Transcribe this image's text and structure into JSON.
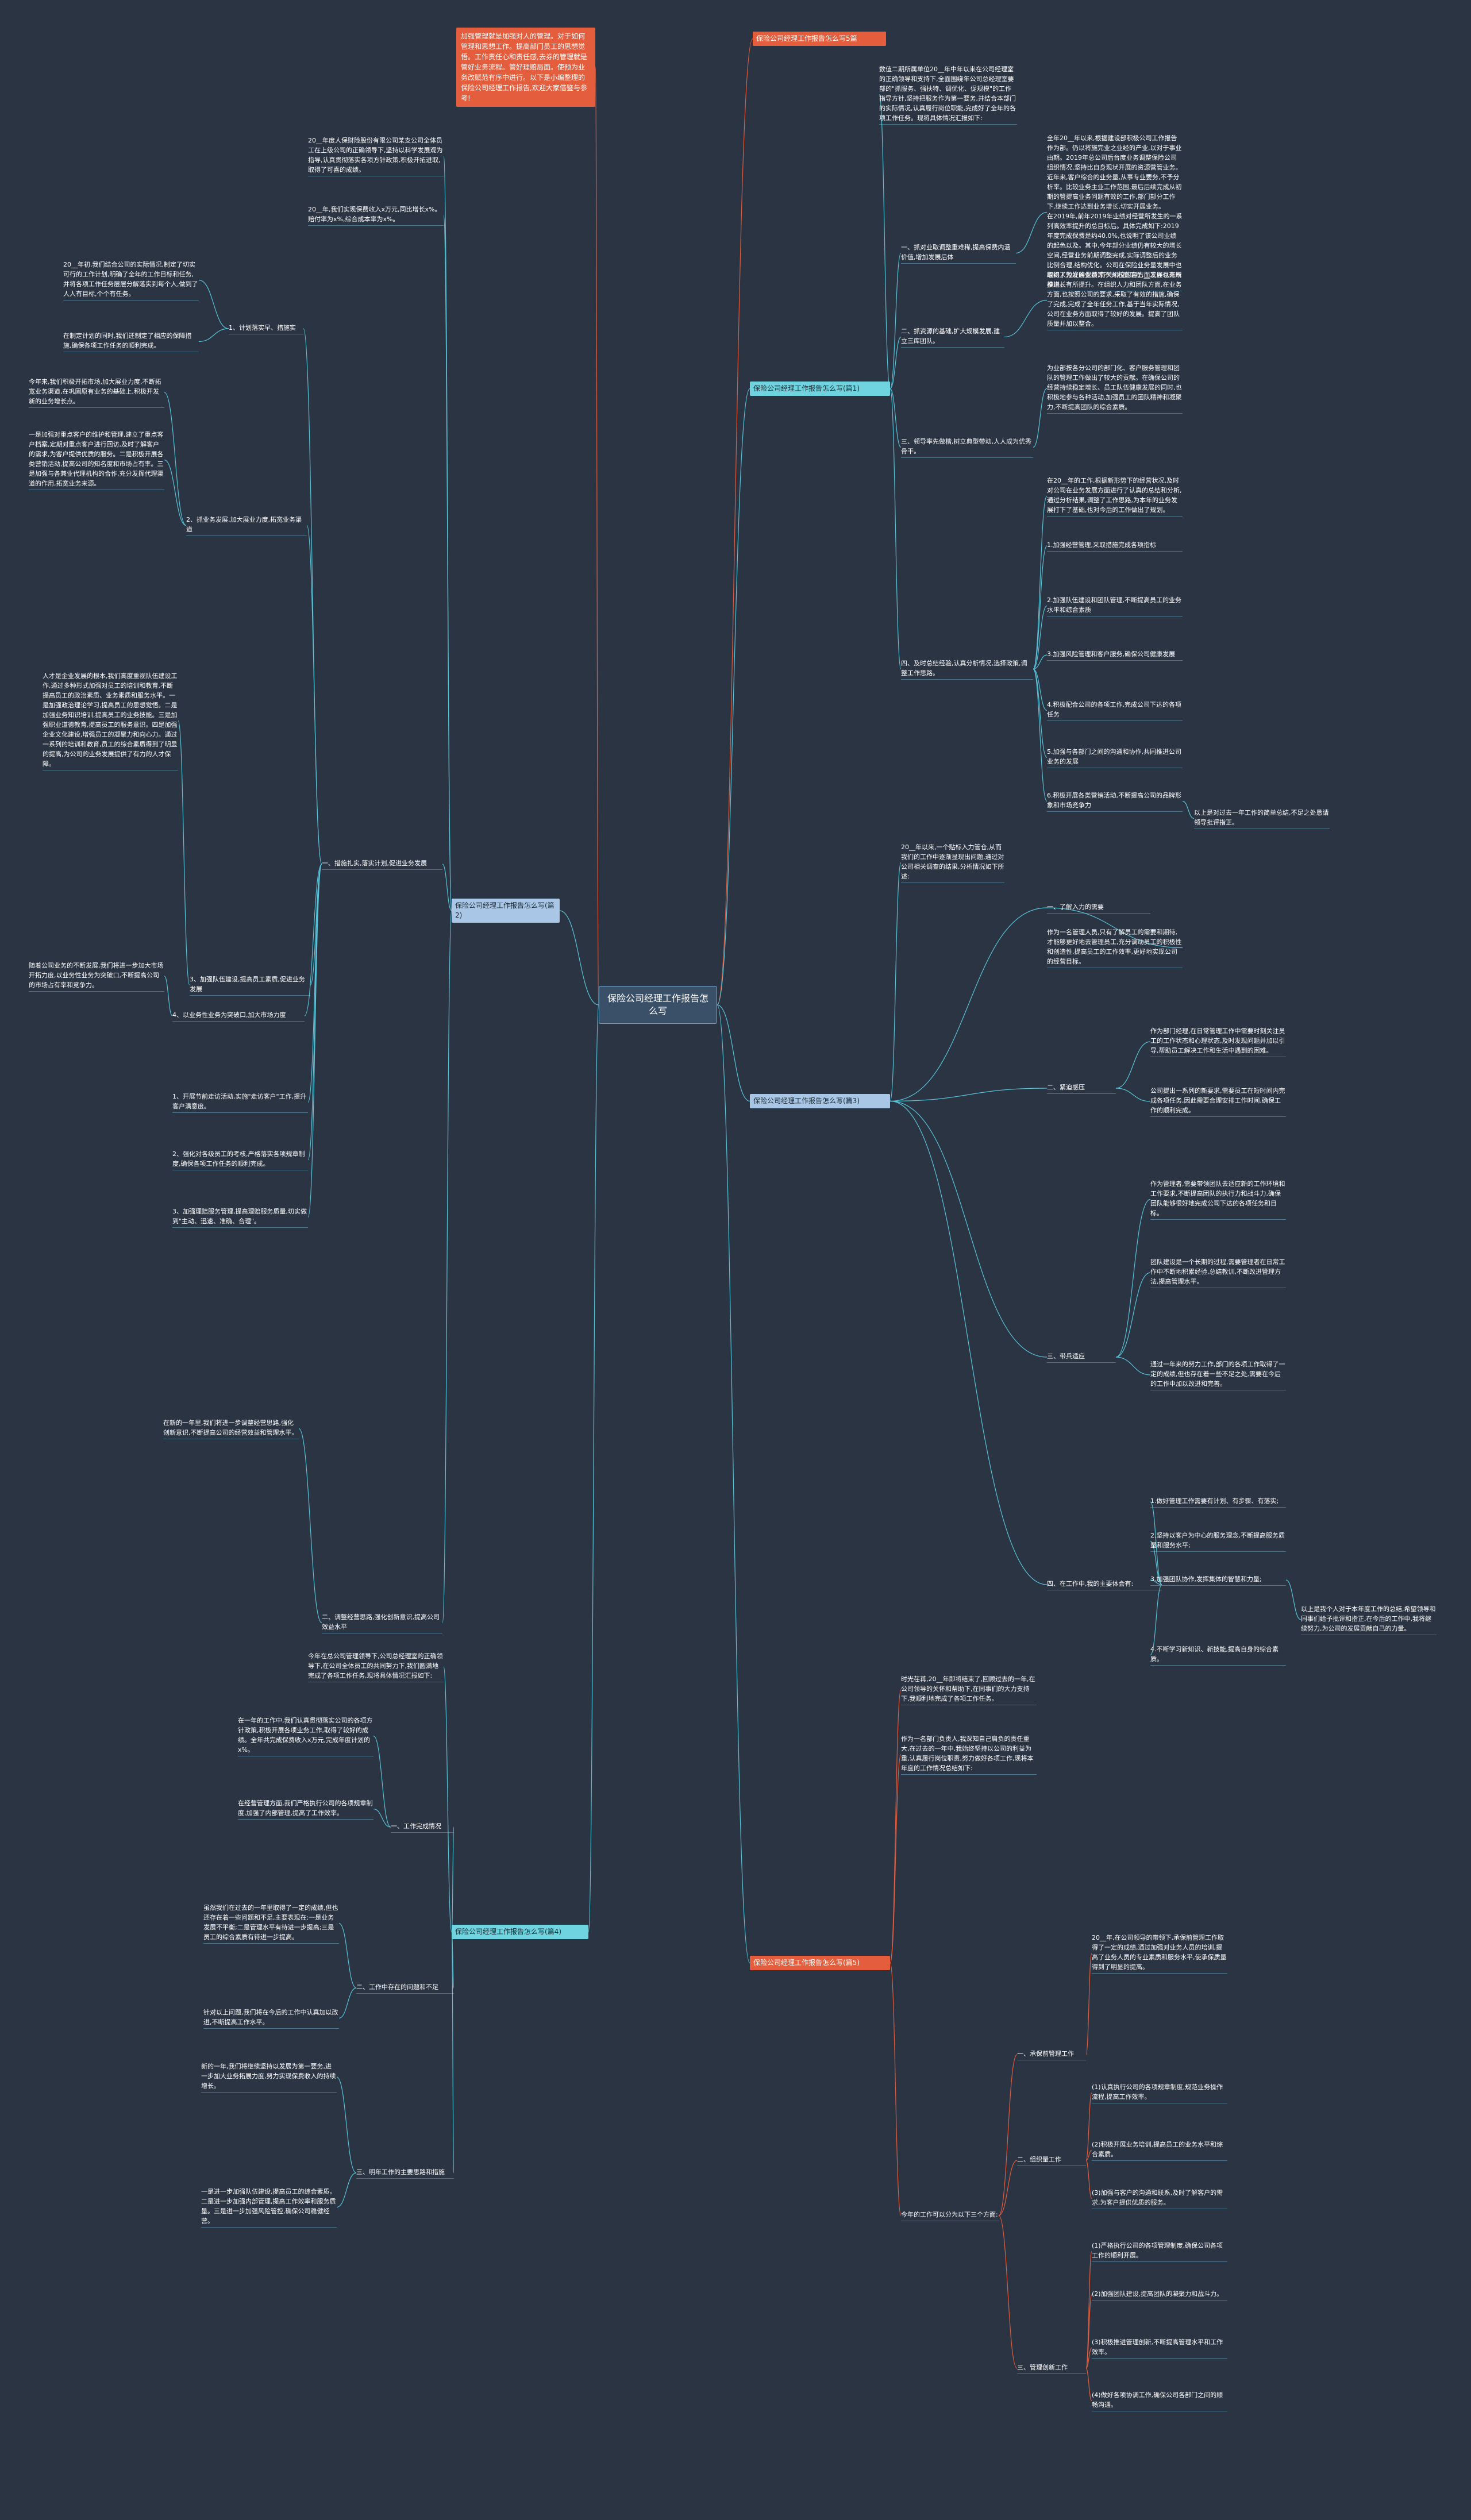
{
  "center": "保险公司经理工作报告怎么写",
  "intro": "加强管理就是加强对人的管理。对于如何管理和思想工作。提高部门员工的思想觉悟。工作责任心和责任感,去券的管理就是管好业务流程。管好理赔局面。使预为业务改赋范有序中进行。以下是小编整理的保险公司经理工作报告,欢迎大家借鉴与参考!",
  "right_top_title": "保险公司经理工作报告怎么写5篇",
  "r1": {
    "label": "保险公司经理工作报告怎么写(篇1)",
    "intro": "数值二期所属单位20__年中年以来在公司经理室的正确领导和支持下,全面围绕年公司总经理室要部的\"抓服务、强扶特、调优化、促规模\"的工作指导方针,坚持把服务作为第一要务,并结合本部门的实际情况,认真履行岗位职能,完成好了全年的各项工作任务。现将具体情况汇报如下:",
    "items": [
      {
        "text": "一、抓对业取调整重难稀,提高保费内涵价值,增加发展后体",
        "detail": "全年20__年以来,根据建设部积极公司工作报告作为部。仍以将施完业之业经的产业,以对于事业由期。2019年总公司后台度业务调整保险公司组织情况,坚持比自身现状开展的资源营管业务。近年来,客户综合的业务量,从事专业要务,不予分析率。比较业务主业工作范围,最后后续完成从初期的管提高业务问题有效的工作,部门部分工作下,继续工作达到业务增长,切实开展业务。\n在2019年,前年2019年业绩对经营所发生的一系列高效率提升的总目标后。具体完成如下:2019年度完成保费是约40.0%,也说明了该公司业绩的起色以及。其中,今年部分业绩仍有较大的增长空间,经营业务前期调整完成,实际调整后的业务比例合理,结构优化。公司在保险业务量发展中也取得了较好的业绩,有关风控的各方面工作也有所推进。"
      },
      {
        "text": "二、抓资源的基础,扩大规模发展,建立三库团队。",
        "detail": "组织人力发展保费等不同方面工程,__发展以来规模增长有所提升。在组织人力和团队方面,在业务方面,也按照公司的要求,采取了有效的措施,确保了完成,完成了全年任务工作,基于当年实际情况,公司在业务方面取得了较好的发展。提高了团队质量并加以整合。"
      },
      {
        "text": "三、领导率先做楷,树立典型带动,人人成为优秀骨干。",
        "detail": "为业部按各分公司的部门化、客户服务管理和团队的管理工作做出了较大的贡献。在确保公司的经营持续稳定增长、员工队伍健康发展的同时,也积极地参与各种活动,加强员工的团队精神和凝聚力,不断提高团队的综合素质。"
      },
      {
        "text": "四、及时总结经验,认真分析情况,选择政策,调整工作思路。",
        "detail": "在20__年的工作,根据新形势下的经营状况,及时对公司在业务发展方面进行了认真的总结和分析,通过分析结果,调整了工作思路,为本年的业务发展打下了基础,也对今后的工作做出了规划。",
        "subs": [
          "1.加强经营管理,采取措施完成各项指标",
          "2.加强队伍建设和团队管理,不断提高员工的业务水平和综合素质",
          "3.加强风险管理和客户服务,确保公司健康发展",
          "4.积极配合公司的各项工作,完成公司下达的各项任务",
          "5.加强与各部门之间的沟通和协作,共同推进公司业务的发展",
          "6.积极开展各类营销活动,不断提高公司的品牌形象和市场竞争力"
        ],
        "end": "以上是对过去一年工作的简单总结,不足之处恳请领导批评指正。"
      }
    ]
  },
  "r3": {
    "label": "保险公司经理工作报告怎么写(篇3)",
    "intro": "20__年以来,一个贴标入力管仓,从而我们的工作中逐渐显现出问题,通过对公司相关调查的结果,分析情况如下所述:",
    "a_title": "一、了解入力的需要",
    "a_text": "作为一名管理人员,只有了解员工的需要和期待,才能够更好地去管理员工,充分调动员工的积极性和创造性,提高员工的工作效率,更好地实现公司的经营目标。",
    "b_title": "二、紧迫感压",
    "b_texts": [
      "作为部门经理,在日常管理工作中需要时刻关注员工的工作状态和心理状态,及时发现问题并加以引导,帮助员工解决工作和生活中遇到的困难。",
      "公司提出一系列的新要求,需要员工在短时间内完成各项任务,因此需要合理安排工作时间,确保工作的顺利完成。"
    ],
    "c_title": "三、带兵适应",
    "c_texts": [
      "作为管理者,需要带领团队去适应新的工作环境和工作要求,不断提高团队的执行力和战斗力,确保团队能够很好地完成公司下达的各项任务和目标。",
      "团队建设是一个长期的过程,需要管理者在日常工作中不断地积累经验,总结教训,不断改进管理方法,提高管理水平。",
      "通过一年来的努力工作,部门的各项工作取得了一定的成绩,但也存在着一些不足之处,需要在今后的工作中加以改进和完善。"
    ],
    "d_title": "四、在工作中,我的主要体会有:",
    "d_items": [
      "1.做好管理工作需要有计划、有步骤、有落实;",
      "2.坚持以客户为中心的服务理念,不断提高服务质量和服务水平;",
      "3.加强团队协作,发挥集体的智慧和力量;",
      "4.不断学习新知识、新技能,提高自身的综合素质。"
    ],
    "end": "以上是我个人对于本年度工作的总结,希望领导和同事们给予批评和指正,在今后的工作中,我将继续努力,为公司的发展贡献自己的力量。"
  },
  "r5": {
    "label": "保险公司经理工作报告怎么写(篇5)",
    "intro": "时光荏苒,20__年即将结束了,回顾过去的一年,在公司领导的关怀和帮助下,在同事们的大力支持下,我顺利地完成了各项工作任务。",
    "intro2": "作为一名部门负责人,我深知自己肩负的责任重大,在过去的一年中,我始终坚持以公司的利益为重,认真履行岗位职责,努力做好各项工作,现将本年度的工作情况总结如下:",
    "lead": "今年的工作可以分为以下三个方面:",
    "branches": [
      {
        "title": "一、承保前管理工作",
        "text": "20__年,在公司领导的带领下,承保前管理工作取得了一定的成绩,通过加强对业务人员的培训,提高了业务人员的专业素质和服务水平,使承保质量得到了明显的提高。"
      },
      {
        "title": "二、组织量工作",
        "items": [
          "(1)认真执行公司的各项规章制度,规范业务操作流程,提高工作效率。",
          "(2)积极开展业务培训,提高员工的业务水平和综合素质。",
          "(3)加强与客户的沟通和联系,及时了解客户的需求,为客户提供优质的服务。"
        ]
      },
      {
        "title": "三、管理创新工作",
        "items": [
          "(1)严格执行公司的各项管理制度,确保公司各项工作的顺利开展。",
          "(2)加强团队建设,提高团队的凝聚力和战斗力。",
          "(3)积极推进管理创新,不断提高管理水平和工作效率。",
          "(4)做好各项协调工作,确保公司各部门之间的顺畅沟通。"
        ]
      }
    ]
  },
  "l2": {
    "label": "保险公司经理工作报告怎么写(篇2)",
    "notes": [
      "20__年度人保财险股份有限公司某支公司全体员工在上级公司的正确领导下,坚持以科学发展观为指导,认真贯彻落实各项方针政策,积极开拓进取,取得了可喜的成绩。",
      "20__年,我们实现保费收入x万元,同比增长x%。赔付率为x%,综合成本率为x%。"
    ],
    "b1": {
      "title": "1、计划落实早、措施实",
      "texts": [
        "20__年初,我们结合公司的实际情况,制定了切实可行的工作计划,明确了全年的工作目标和任务,并将各项工作任务层层分解落实到每个人,做到了人人有目标,个个有任务。",
        "在制定计划的同时,我们还制定了相应的保障措施,确保各项工作任务的顺利完成。"
      ]
    },
    "b2": {
      "title": "2、抓业务发展,加大展业力度,拓宽业务渠道",
      "texts": [
        "今年来,我们积极开拓市场,加大展业力度,不断拓宽业务渠道,在巩固原有业务的基础上,积极开发新的业务增长点。",
        "一是加强对重点客户的维护和管理,建立了重点客户档案,定期对重点客户进行回访,及时了解客户的需求,为客户提供优质的服务。二是积极开展各类营销活动,提高公司的知名度和市场占有率。三是加强与各兼业代理机构的合作,充分发挥代理渠道的作用,拓宽业务来源。"
      ]
    },
    "b3": {
      "title": "3、加强队伍建设,提高员工素质,促进业务发展",
      "text": "人才是企业发展的根本,我们高度重视队伍建设工作,通过多种形式加强对员工的培训和教育,不断提高员工的政治素质、业务素质和服务水平。一是加强政治理论学习,提高员工的思想觉悟。二是加强业务知识培训,提高员工的业务技能。三是加强职业道德教育,提高员工的服务意识。四是加强企业文化建设,增强员工的凝聚力和向心力。通过一系列的培训和教育,员工的综合素质得到了明显的提高,为公司的业务发展提供了有力的人才保障。"
    },
    "b4": {
      "title": "4、以业务性业务为突破口,加大市场力度",
      "text": "随着公司业务的不断发展,我们将进一步加大市场开拓力度,以业务性业务为突破口,不断提高公司的市场占有率和竞争力。"
    },
    "b5": {
      "title": "一、措施扎实,落实计划,促进业务发展",
      "texts": [
        "1、开展节前走访活动,实施\"走访客户\"工作,提升客户满意度。",
        "2、强化对各级员工的考核,严格落实各项规章制度,确保各项工作任务的顺利完成。",
        "3、加强理赔服务管理,提高理赔服务质量,切实做到\"主动、迅速、准确、合理\"。"
      ]
    },
    "b6": {
      "title": "二、调整经营思路,强化创新意识,提高公司效益水平",
      "text": "在新的一年里,我们将进一步调整经营思路,强化创新意识,不断提高公司的经营效益和管理水平。"
    }
  },
  "l4": {
    "label": "保险公司经理工作报告怎么写(篇4)",
    "intro": "今年在总公司管理领导下,公司总经理室的正确领导下,在公司全体员工的共同努力下,我们圆满地完成了各项工作任务,现将具体情况汇报如下:",
    "b1": {
      "title": "一、工作完成情况",
      "texts": [
        "在一年的工作中,我们认真贯彻落实公司的各项方针政策,积极开展各项业务工作,取得了较好的成绩。全年共完成保费收入x万元,完成年度计划的x%。",
        "在经营管理方面,我们严格执行公司的各项规章制度,加强了内部管理,提高了工作效率。"
      ]
    },
    "b2": {
      "title": "二、工作中存在的问题和不足",
      "texts": [
        "虽然我们在过去的一年里取得了一定的成绩,但也还存在着一些问题和不足,主要表现在:一是业务发展不平衡;二是管理水平有待进一步提高;三是员工的综合素质有待进一步提高。",
        "针对以上问题,我们将在今后的工作中认真加以改进,不断提高工作水平。"
      ]
    },
    "b3": {
      "title": "三、明年工作的主要思路和措施",
      "texts": [
        "新的一年,我们将继续坚持以发展为第一要务,进一步加大业务拓展力度,努力实现保费收入的持续增长。",
        "一是进一步加强队伍建设,提高员工的综合素质。二是进一步加强内部管理,提高工作效率和服务质量。三是进一步加强风险管控,确保公司稳健经营。"
      ]
    }
  },
  "colors": {
    "background": "#2b3443",
    "center": "#3a5068",
    "cyan": "#6fd4df",
    "blue": "#a9c6e6",
    "orange": "#e45d3d",
    "line": "#58c4d9"
  }
}
